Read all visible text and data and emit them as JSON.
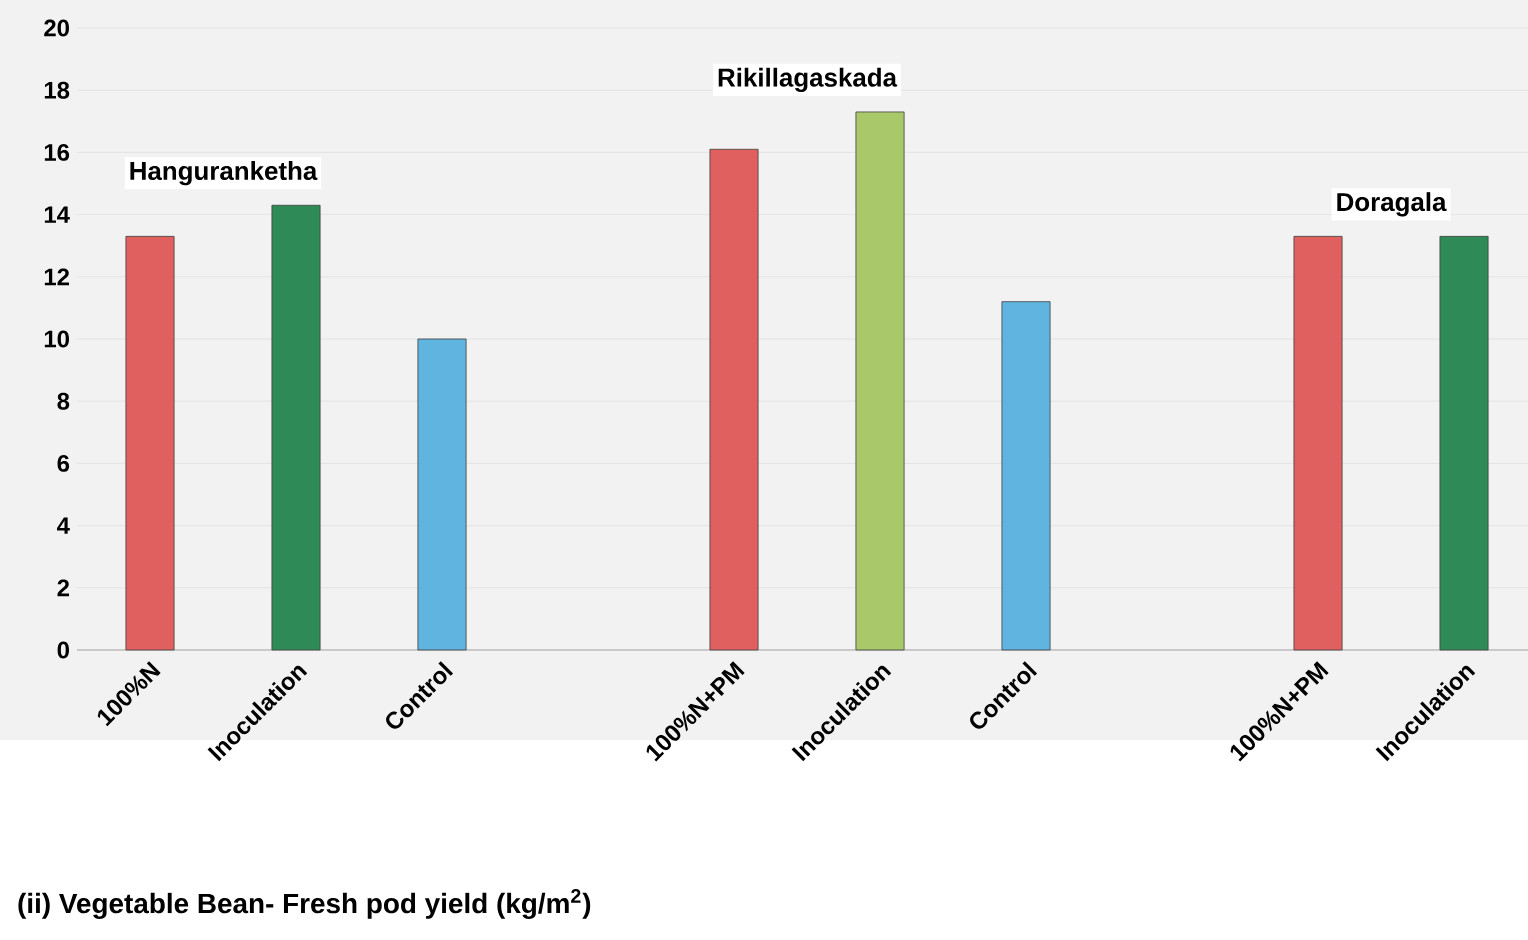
{
  "chart_data": {
    "type": "bar",
    "title": "(ii) Vegetable Bean- Fresh pod yield (kg/m$^{2}$)",
    "categories": [
      "100%N",
      "Inoculation",
      "Control",
      null,
      "100%N+PM",
      "Inoculation",
      "Control",
      null,
      "100%N+PM",
      "Inoculation"
    ],
    "values": [
      13.3,
      14.3,
      10.0,
      null,
      16.1,
      17.3,
      11.2,
      null,
      13.3,
      13.3
    ],
    "colors": [
      "#e06060",
      "#2e8b57",
      "#5fb4e0",
      null,
      "#e06060",
      "#a8c86a",
      "#5fb4e0",
      null,
      "#e06060",
      "#2e8b57"
    ],
    "annotations": [
      "Hanguranketha",
      "Rikillagaskada",
      "Doragala"
    ],
    "ylim": [
      0,
      20
    ],
    "yticks": [
      0,
      2,
      4,
      6,
      8,
      10,
      12,
      14,
      16,
      18,
      20
    ],
    "grid": "y"
  }
}
